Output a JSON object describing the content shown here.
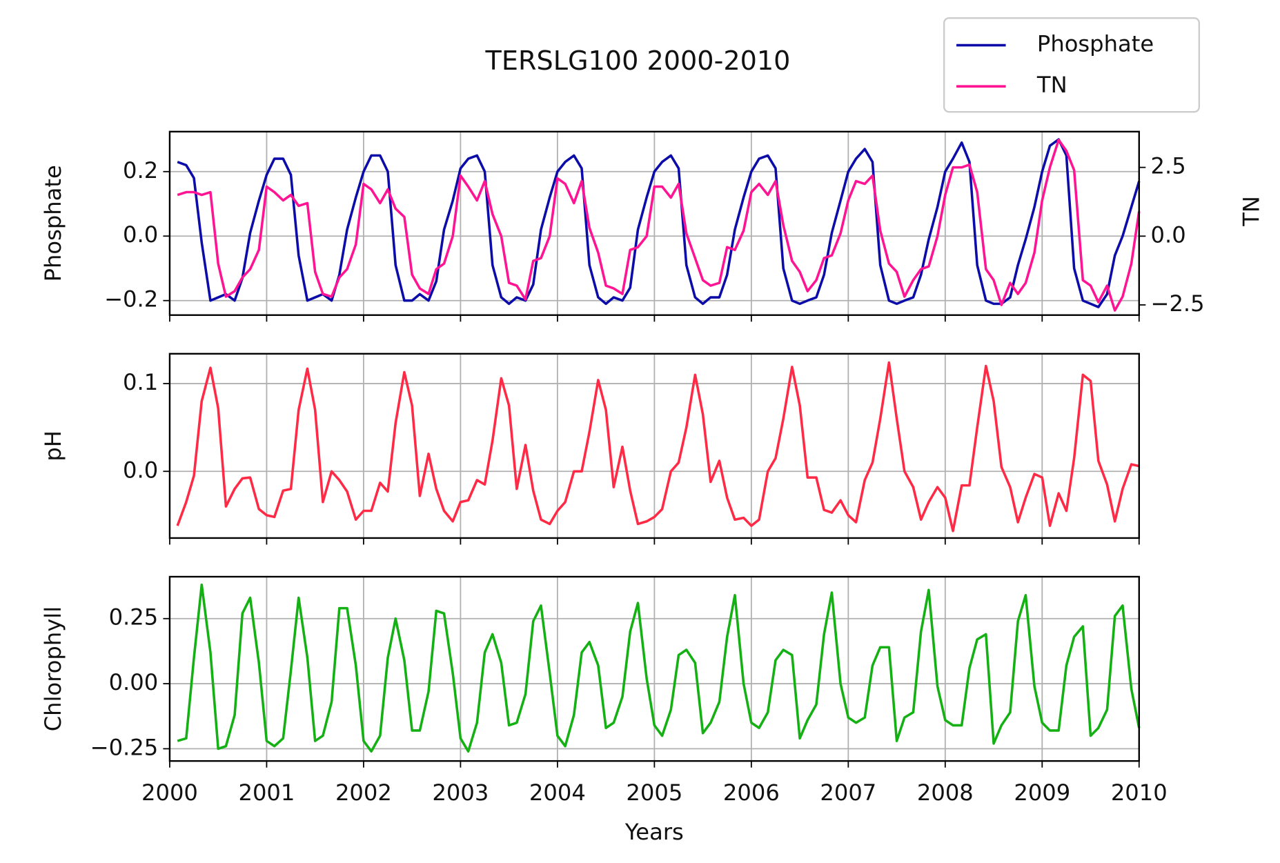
{
  "chart_data": {
    "type": "line",
    "title": "TERSLG100 2000-2010",
    "xlabel": "Years",
    "grid": true,
    "legend": "upper right",
    "xlim": [
      2000,
      2010
    ],
    "xticks": [
      2000,
      2001,
      2002,
      2003,
      2004,
      2005,
      2006,
      2007,
      2008,
      2009,
      2010
    ],
    "x": [
      2000.08,
      2000.17,
      2000.25,
      2000.33,
      2000.42,
      2000.5,
      2000.58,
      2000.67,
      2000.75,
      2000.83,
      2000.92,
      2001,
      2001.08,
      2001.17,
      2001.25,
      2001.33,
      2001.42,
      2001.5,
      2001.58,
      2001.67,
      2001.75,
      2001.83,
      2001.92,
      2002,
      2002.08,
      2002.17,
      2002.25,
      2002.33,
      2002.42,
      2002.5,
      2002.58,
      2002.67,
      2002.75,
      2002.83,
      2002.92,
      2003,
      2003.08,
      2003.17,
      2003.25,
      2003.33,
      2003.42,
      2003.5,
      2003.58,
      2003.67,
      2003.75,
      2003.83,
      2003.92,
      2004,
      2004.08,
      2004.17,
      2004.25,
      2004.33,
      2004.42,
      2004.5,
      2004.58,
      2004.67,
      2004.75,
      2004.83,
      2004.92,
      2005,
      2005.08,
      2005.17,
      2005.25,
      2005.33,
      2005.42,
      2005.5,
      2005.58,
      2005.67,
      2005.75,
      2005.83,
      2005.92,
      2006,
      2006.08,
      2006.17,
      2006.25,
      2006.33,
      2006.42,
      2006.5,
      2006.58,
      2006.67,
      2006.75,
      2006.83,
      2006.92,
      2007,
      2007.08,
      2007.17,
      2007.25,
      2007.33,
      2007.42,
      2007.5,
      2007.58,
      2007.67,
      2007.75,
      2007.83,
      2007.92,
      2008,
      2008.08,
      2008.17,
      2008.25,
      2008.33,
      2008.42,
      2008.5,
      2008.58,
      2008.67,
      2008.75,
      2008.83,
      2008.92,
      2009,
      2009.08,
      2009.17,
      2009.25,
      2009.33,
      2009.42,
      2009.5,
      2009.58,
      2009.67,
      2009.75,
      2009.83,
      2009.92,
      2010
    ],
    "panels": [
      {
        "ylabel": "Phosphate",
        "ylim": [
          -0.245,
          0.324
        ],
        "yticks": [
          {
            "value": -0.2,
            "label": "−0.2"
          },
          {
            "value": 0,
            "label": "0.0"
          },
          0.2
        ],
        "y2label": "TN",
        "y2lim": [
          -2.87,
          3.8
        ],
        "y2ticks": [
          {
            "value": -2.5,
            "label": "−2.5"
          },
          {
            "value": 0,
            "label": "0.0"
          },
          2.5
        ],
        "series": [
          {
            "name": "Phosphate",
            "color": "#0c0ca8",
            "values": [
              0.23,
              0.22,
              0.18,
              -0.02,
              -0.2,
              -0.19,
              -0.18,
              -0.2,
              -0.13,
              0.01,
              0.11,
              0.19,
              0.24,
              0.24,
              0.19,
              -0.06,
              -0.2,
              -0.19,
              -0.18,
              -0.2,
              -0.12,
              0.02,
              0.12,
              0.2,
              0.25,
              0.25,
              0.2,
              -0.09,
              -0.2,
              -0.2,
              -0.18,
              -0.2,
              -0.14,
              0.02,
              0.11,
              0.21,
              0.24,
              0.25,
              0.2,
              -0.09,
              -0.19,
              -0.21,
              -0.19,
              -0.2,
              -0.15,
              0.02,
              0.12,
              0.2,
              0.23,
              0.25,
              0.21,
              -0.09,
              -0.19,
              -0.21,
              -0.19,
              -0.2,
              -0.16,
              0.02,
              0.12,
              0.2,
              0.23,
              0.25,
              0.21,
              -0.09,
              -0.19,
              -0.21,
              -0.19,
              -0.19,
              -0.12,
              0.02,
              0.12,
              0.2,
              0.24,
              0.25,
              0.21,
              -0.1,
              -0.2,
              -0.21,
              -0.2,
              -0.19,
              -0.12,
              0.01,
              0.11,
              0.2,
              0.24,
              0.27,
              0.23,
              -0.09,
              -0.2,
              -0.21,
              -0.2,
              -0.19,
              -0.12,
              -0.01,
              0.09,
              0.2,
              0.24,
              0.29,
              0.23,
              -0.09,
              -0.2,
              -0.21,
              -0.21,
              -0.19,
              -0.09,
              -0.01,
              0.09,
              0.2,
              0.28,
              0.3,
              0.25,
              -0.1,
              -0.2,
              -0.21,
              -0.22,
              -0.18,
              -0.06,
              0.0,
              0.09,
              0.17
            ]
          },
          {
            "name": "TN",
            "color": "#ff1493",
            "axis": "y2",
            "values": [
              1.5,
              1.6,
              1.6,
              1.5,
              1.6,
              -1.0,
              -2.2,
              -2.0,
              -1.5,
              -1.2,
              -0.5,
              1.8,
              1.6,
              1.3,
              1.5,
              1.1,
              1.2,
              -1.3,
              -2.1,
              -2.2,
              -1.5,
              -1.2,
              -0.3,
              1.9,
              1.7,
              1.2,
              1.7,
              1.0,
              0.7,
              -1.4,
              -1.9,
              -2.1,
              -1.2,
              -1.0,
              0.0,
              2.2,
              1.8,
              1.3,
              2.0,
              0.8,
              0.0,
              -1.7,
              -1.8,
              -2.3,
              -0.9,
              -0.8,
              0.0,
              2.1,
              1.9,
              1.2,
              2.0,
              0.3,
              -0.6,
              -1.8,
              -1.9,
              -2.1,
              -0.5,
              -0.4,
              0.0,
              1.8,
              1.8,
              1.4,
              1.9,
              0.1,
              -0.8,
              -1.6,
              -1.8,
              -1.7,
              -0.4,
              -0.5,
              0.2,
              1.6,
              1.9,
              1.5,
              2.0,
              0.4,
              -0.9,
              -1.3,
              -2.0,
              -1.6,
              -0.8,
              -0.7,
              0.1,
              1.3,
              2.0,
              1.9,
              2.2,
              0.2,
              -1.0,
              -1.3,
              -2.2,
              -1.6,
              -1.2,
              -1.1,
              0.0,
              1.5,
              2.5,
              2.5,
              2.6,
              1.6,
              -1.2,
              -1.6,
              -2.5,
              -1.7,
              -2.1,
              -1.7,
              -0.6,
              1.3,
              2.5,
              3.5,
              3.1,
              2.4,
              -1.6,
              -1.8,
              -2.4,
              -1.8,
              -2.7,
              -2.2,
              -1.0,
              0.9
            ]
          }
        ]
      },
      {
        "ylabel": "pH",
        "ylim": [
          -0.076,
          0.134
        ],
        "yticks": [
          {
            "value": 0,
            "label": "0.0"
          },
          0.1
        ],
        "series": [
          {
            "name": "pH",
            "color": "#ff2a45",
            "values": [
              -0.062,
              -0.035,
              -0.005,
              0.08,
              0.118,
              0.072,
              -0.04,
              -0.02,
              -0.008,
              -0.007,
              -0.043,
              -0.05,
              -0.052,
              -0.022,
              -0.02,
              0.07,
              0.117,
              0.07,
              -0.035,
              0.0,
              -0.01,
              -0.023,
              -0.055,
              -0.045,
              -0.045,
              -0.013,
              -0.023,
              0.055,
              0.113,
              0.075,
              -0.028,
              0.02,
              -0.02,
              -0.045,
              -0.057,
              -0.035,
              -0.033,
              -0.01,
              -0.015,
              0.035,
              0.106,
              0.075,
              -0.02,
              0.03,
              -0.022,
              -0.055,
              -0.06,
              -0.045,
              -0.035,
              0.0,
              0.0,
              0.045,
              0.104,
              0.07,
              -0.018,
              0.028,
              -0.022,
              -0.06,
              -0.057,
              -0.052,
              -0.043,
              0.0,
              0.01,
              0.05,
              0.11,
              0.065,
              -0.012,
              0.012,
              -0.03,
              -0.055,
              -0.053,
              -0.062,
              -0.055,
              0.0,
              0.015,
              0.06,
              0.119,
              0.075,
              -0.007,
              -0.007,
              -0.044,
              -0.047,
              -0.033,
              -0.05,
              -0.058,
              -0.01,
              0.01,
              0.06,
              0.124,
              0.06,
              0.0,
              -0.018,
              -0.055,
              -0.035,
              -0.018,
              -0.03,
              -0.068,
              -0.016,
              -0.016,
              0.05,
              0.12,
              0.08,
              0.005,
              -0.018,
              -0.058,
              -0.03,
              -0.003,
              -0.007,
              -0.062,
              -0.025,
              -0.045,
              0.015,
              0.11,
              0.103,
              0.012,
              -0.015,
              -0.057,
              -0.02,
              0.008,
              0.006
            ]
          }
        ]
      },
      {
        "ylabel": "Chlorophyll",
        "ylim": [
          -0.297,
          0.411
        ],
        "yticks": [
          {
            "value": -0.25,
            "label": "−0.25"
          },
          {
            "value": 0,
            "label": "0.00"
          },
          0.25
        ],
        "series": [
          {
            "name": "Chlorophyll",
            "color": "#14b014",
            "values": [
              -0.22,
              -0.21,
              0.1,
              0.38,
              0.12,
              -0.25,
              -0.24,
              -0.12,
              0.27,
              0.33,
              0.08,
              -0.22,
              -0.24,
              -0.21,
              0.05,
              0.33,
              0.1,
              -0.22,
              -0.2,
              -0.07,
              0.29,
              0.29,
              0.07,
              -0.22,
              -0.26,
              -0.2,
              0.1,
              0.25,
              0.09,
              -0.18,
              -0.18,
              -0.03,
              0.28,
              0.27,
              0.04,
              -0.21,
              -0.26,
              -0.15,
              0.12,
              0.19,
              0.08,
              -0.16,
              -0.15,
              -0.04,
              0.24,
              0.3,
              0.04,
              -0.2,
              -0.24,
              -0.12,
              0.12,
              0.16,
              0.07,
              -0.17,
              -0.15,
              -0.05,
              0.2,
              0.31,
              0.02,
              -0.16,
              -0.2,
              -0.1,
              0.11,
              0.13,
              0.08,
              -0.19,
              -0.15,
              -0.07,
              0.18,
              0.34,
              0.0,
              -0.15,
              -0.17,
              -0.11,
              0.09,
              0.13,
              0.11,
              -0.21,
              -0.14,
              -0.08,
              0.19,
              0.35,
              0.0,
              -0.13,
              -0.15,
              -0.13,
              0.07,
              0.14,
              0.14,
              -0.22,
              -0.13,
              -0.11,
              0.2,
              0.36,
              -0.01,
              -0.14,
              -0.16,
              -0.16,
              0.06,
              0.17,
              0.19,
              -0.23,
              -0.16,
              -0.11,
              0.24,
              0.34,
              -0.01,
              -0.15,
              -0.18,
              -0.18,
              0.07,
              0.18,
              0.22,
              -0.2,
              -0.17,
              -0.1,
              0.26,
              0.3,
              -0.02,
              -0.17
            ]
          }
        ]
      }
    ]
  }
}
